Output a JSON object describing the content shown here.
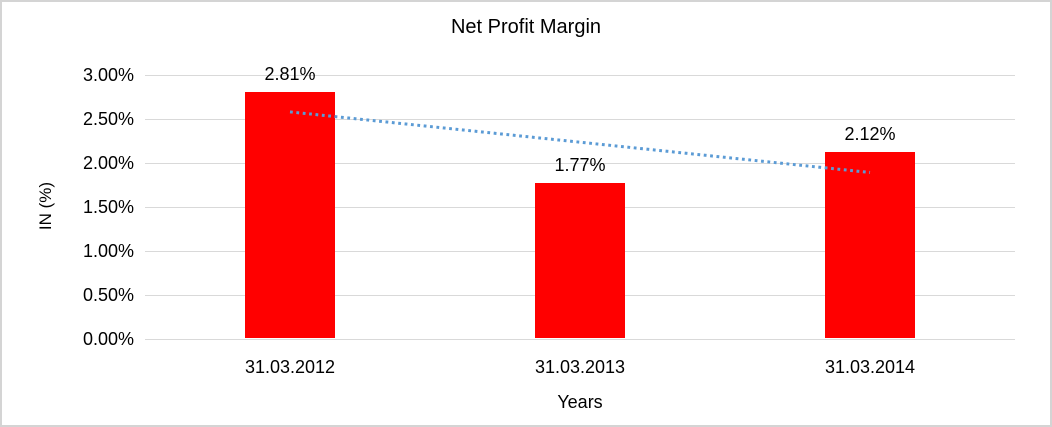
{
  "chart_data": {
    "type": "bar",
    "title": "Net Profit Margin",
    "xlabel": "Years",
    "ylabel": "IN (%)",
    "categories": [
      "31.03.2012",
      "31.03.2013",
      "31.03.2014"
    ],
    "values": [
      2.81,
      1.77,
      2.12
    ],
    "data_labels": [
      "2.81%",
      "1.77%",
      "2.12%"
    ],
    "ylim": [
      0,
      3
    ],
    "y_ticks": [
      {
        "value": 0.0,
        "label": "0.00%"
      },
      {
        "value": 0.5,
        "label": "0.50%"
      },
      {
        "value": 1.0,
        "label": "1.00%"
      },
      {
        "value": 1.5,
        "label": "1.50%"
      },
      {
        "value": 2.0,
        "label": "2.00%"
      },
      {
        "value": 2.5,
        "label": "2.50%"
      },
      {
        "value": 3.0,
        "label": "3.00%"
      }
    ],
    "gridlines": true,
    "legend": "none",
    "bar_color": "#FF0000",
    "grid_color": "#d9d9d9",
    "trendline": {
      "type": "linear",
      "style": "dotted",
      "color": "#5B9BD5",
      "start_value": 2.58,
      "end_value": 1.89
    }
  }
}
